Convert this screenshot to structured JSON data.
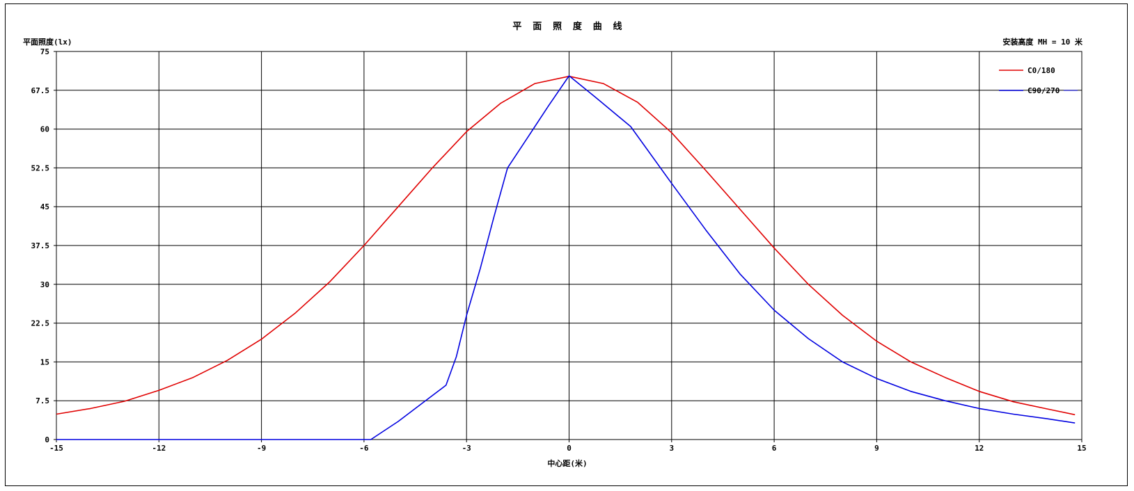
{
  "chart_data": {
    "type": "line",
    "title": "平 面 照 度 曲 线",
    "ylabel": "平面照度(lx)",
    "xlabel": "中心距(米)",
    "mounting_height_label": "安装高度 MH = 10 米",
    "xlim": [
      -15,
      15
    ],
    "ylim": [
      0,
      75
    ],
    "xticks": [
      -15,
      -12,
      -9,
      -6,
      -3,
      0,
      3,
      6,
      9,
      12,
      15
    ],
    "yticks": [
      0,
      7.5,
      15,
      22.5,
      30,
      37.5,
      45,
      52.5,
      60,
      67.5,
      75
    ],
    "grid": true,
    "legend_position": "top-right",
    "series": [
      {
        "name": "C0/180",
        "color": "#e00000",
        "points": [
          [
            -15,
            4.9
          ],
          [
            -14,
            6.0
          ],
          [
            -13,
            7.4
          ],
          [
            -12,
            9.5
          ],
          [
            -11,
            12.0
          ],
          [
            -10,
            15.3
          ],
          [
            -9,
            19.4
          ],
          [
            -8,
            24.5
          ],
          [
            -7,
            30.5
          ],
          [
            -6,
            37.5
          ],
          [
            -5,
            45.0
          ],
          [
            -4,
            52.5
          ],
          [
            -3,
            59.5
          ],
          [
            -2,
            65.0
          ],
          [
            -1,
            68.8
          ],
          [
            0,
            70.2
          ],
          [
            1,
            68.8
          ],
          [
            2,
            65.2
          ],
          [
            3,
            59.3
          ],
          [
            4,
            52.0
          ],
          [
            5,
            44.5
          ],
          [
            6,
            37.0
          ],
          [
            7,
            30.0
          ],
          [
            8,
            24.0
          ],
          [
            9,
            19.0
          ],
          [
            10,
            15.0
          ],
          [
            11,
            12.0
          ],
          [
            12,
            9.3
          ],
          [
            13,
            7.3
          ],
          [
            14,
            5.9
          ],
          [
            14.8,
            4.8
          ]
        ]
      },
      {
        "name": "C90/270",
        "color": "#0000e0",
        "points": [
          [
            -15,
            0
          ],
          [
            -12,
            0
          ],
          [
            -9,
            0
          ],
          [
            -6,
            0
          ],
          [
            -5.8,
            0
          ],
          [
            -5,
            3.5
          ],
          [
            -4.3,
            7.0
          ],
          [
            -3.6,
            10.5
          ],
          [
            -3.3,
            16.0
          ],
          [
            -3.0,
            24.0
          ],
          [
            -2.6,
            33.0
          ],
          [
            -2.2,
            43.0
          ],
          [
            -1.8,
            52.5
          ],
          [
            -1.2,
            58.5
          ],
          [
            -0.6,
            64.5
          ],
          [
            0,
            70.3
          ],
          [
            0.8,
            66.0
          ],
          [
            1.8,
            60.5
          ],
          [
            3.0,
            49.5
          ],
          [
            4.0,
            40.5
          ],
          [
            5.0,
            32.0
          ],
          [
            6.0,
            25.0
          ],
          [
            7.0,
            19.5
          ],
          [
            8.0,
            15.0
          ],
          [
            9.0,
            11.8
          ],
          [
            10.0,
            9.3
          ],
          [
            11.0,
            7.5
          ],
          [
            12.0,
            6.0
          ],
          [
            13.0,
            4.9
          ],
          [
            14.0,
            4.0
          ],
          [
            14.8,
            3.2
          ]
        ]
      }
    ]
  }
}
